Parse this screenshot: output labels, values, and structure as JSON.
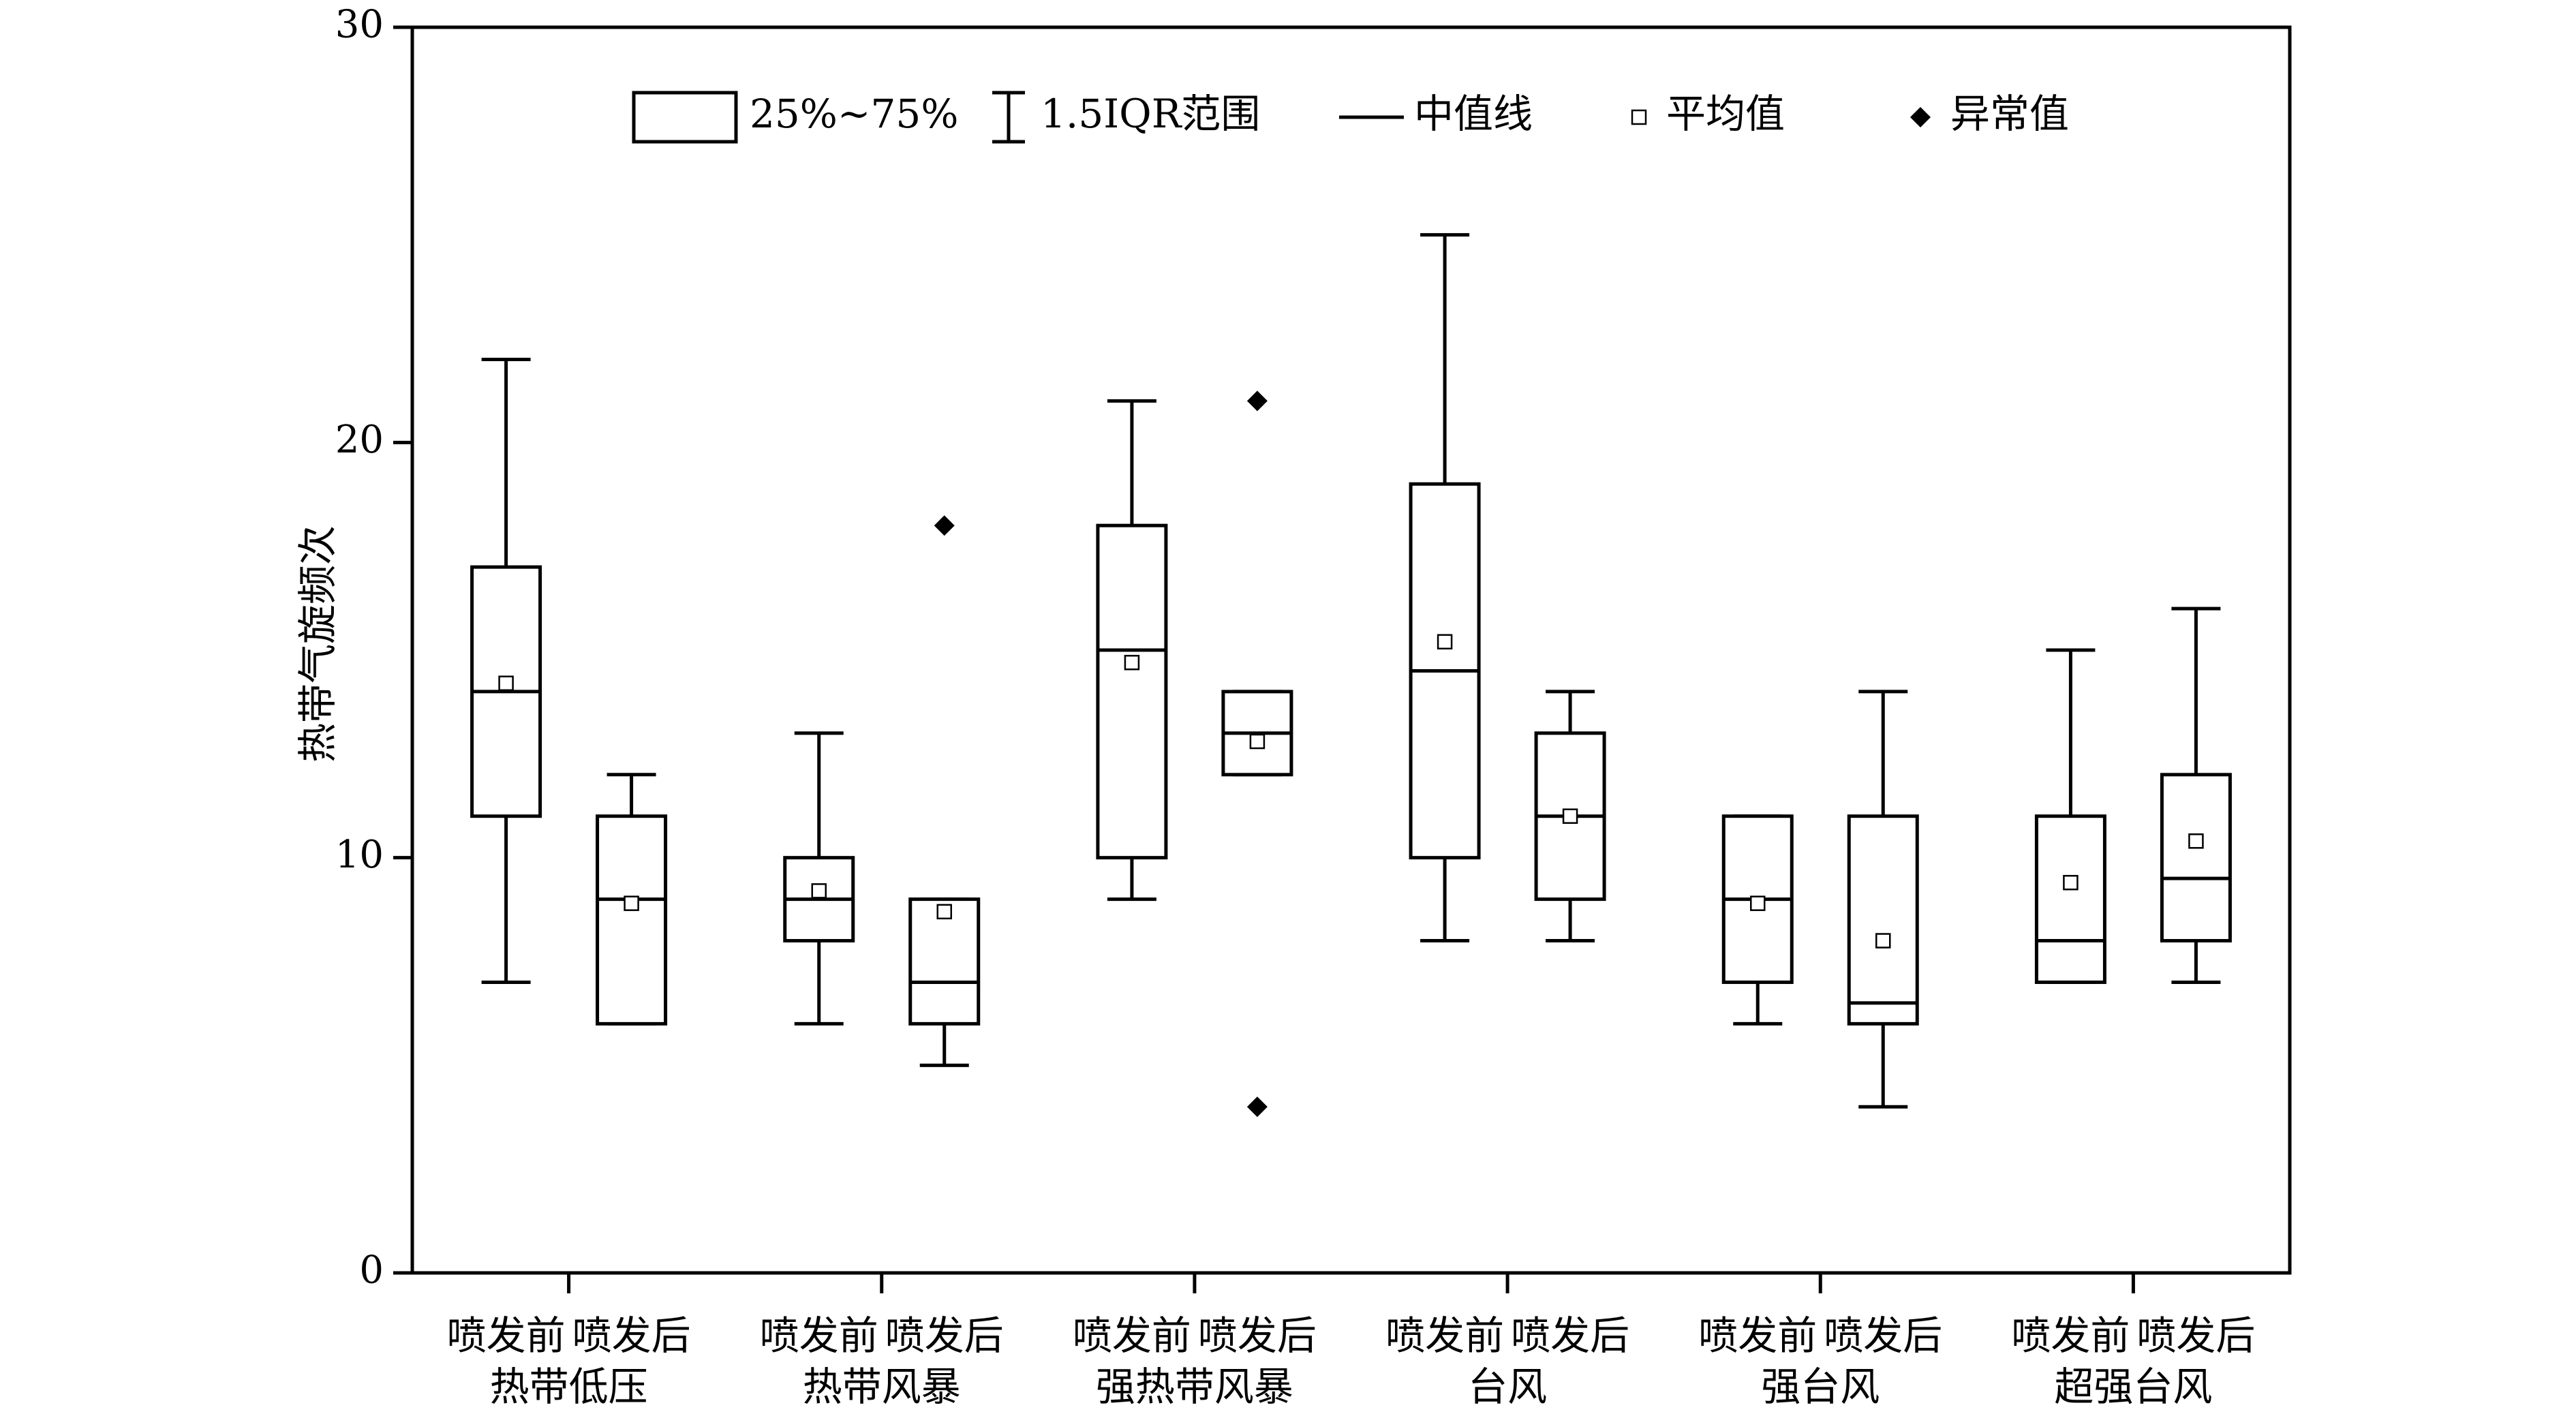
{
  "chart_data": {
    "type": "box",
    "ylabel": "热带气旋频次",
    "ylim": [
      0,
      30
    ],
    "yticks": [
      0,
      10,
      20,
      30
    ],
    "legend": {
      "placement": "top",
      "items": [
        {
          "symbol": "box",
          "label": "25%~75%"
        },
        {
          "symbol": "whisker",
          "label": "1.5IQR范围"
        },
        {
          "symbol": "median-line",
          "label": "中值线"
        },
        {
          "symbol": "mean-square",
          "label": "平均值"
        },
        {
          "symbol": "outlier-diamond",
          "label": "异常值"
        }
      ]
    },
    "groups": [
      {
        "category": "热带低压",
        "sub_labels": [
          "喷发前",
          "喷发后"
        ]
      },
      {
        "category": "热带风暴",
        "sub_labels": [
          "喷发前",
          "喷发后"
        ]
      },
      {
        "category": "强热带风暴",
        "sub_labels": [
          "喷发前",
          "喷发后"
        ]
      },
      {
        "category": "台风",
        "sub_labels": [
          "喷发前",
          "喷发后"
        ]
      },
      {
        "category": "强台风",
        "sub_labels": [
          "喷发前",
          "喷发后"
        ]
      },
      {
        "category": "超强台风",
        "sub_labels": [
          "喷发前",
          "喷发后"
        ]
      }
    ],
    "boxes": [
      {
        "group": 0,
        "period": "喷发前",
        "whisker_low": 7,
        "q1": 11,
        "median": 14,
        "q3": 17,
        "whisker_high": 22,
        "mean": 14.2,
        "outliers": []
      },
      {
        "group": 0,
        "period": "喷发后",
        "whisker_low": 6,
        "q1": 6,
        "median": 9,
        "q3": 11,
        "whisker_high": 12,
        "mean": 8.9,
        "outliers": []
      },
      {
        "group": 1,
        "period": "喷发前",
        "whisker_low": 6,
        "q1": 8,
        "median": 9,
        "q3": 10,
        "whisker_high": 13,
        "mean": 9.2,
        "outliers": []
      },
      {
        "group": 1,
        "period": "喷发后",
        "whisker_low": 5,
        "q1": 6,
        "median": 7,
        "q3": 9,
        "whisker_high": 9,
        "mean": 8.7,
        "outliers": [
          18
        ]
      },
      {
        "group": 2,
        "period": "喷发前",
        "whisker_low": 9,
        "q1": 10,
        "median": 15,
        "q3": 18,
        "whisker_high": 21,
        "mean": 14.7,
        "outliers": []
      },
      {
        "group": 2,
        "period": "喷发后",
        "whisker_low": 12,
        "q1": 12,
        "median": 13,
        "q3": 14,
        "whisker_high": 14,
        "mean": 12.8,
        "outliers": [
          21,
          4
        ]
      },
      {
        "group": 3,
        "period": "喷发前",
        "whisker_low": 8,
        "q1": 10,
        "median": 14.5,
        "q3": 19,
        "whisker_high": 25,
        "mean": 15.2,
        "outliers": []
      },
      {
        "group": 3,
        "period": "喷发后",
        "whisker_low": 8,
        "q1": 9,
        "median": 11,
        "q3": 13,
        "whisker_high": 14,
        "mean": 11,
        "outliers": []
      },
      {
        "group": 4,
        "period": "喷发前",
        "whisker_low": 6,
        "q1": 7,
        "median": 9,
        "q3": 11,
        "whisker_high": 11,
        "mean": 8.9,
        "outliers": []
      },
      {
        "group": 4,
        "period": "喷发后",
        "whisker_low": 4,
        "q1": 6,
        "median": 6.5,
        "q3": 11,
        "whisker_high": 14,
        "mean": 8,
        "outliers": []
      },
      {
        "group": 5,
        "period": "喷发前",
        "whisker_low": 7,
        "q1": 7,
        "median": 8,
        "q3": 11,
        "whisker_high": 15,
        "mean": 9.4,
        "outliers": []
      },
      {
        "group": 5,
        "period": "喷发后",
        "whisker_low": 7,
        "q1": 8,
        "median": 9.5,
        "q3": 12,
        "whisker_high": 16,
        "mean": 10.4,
        "outliers": []
      }
    ]
  }
}
